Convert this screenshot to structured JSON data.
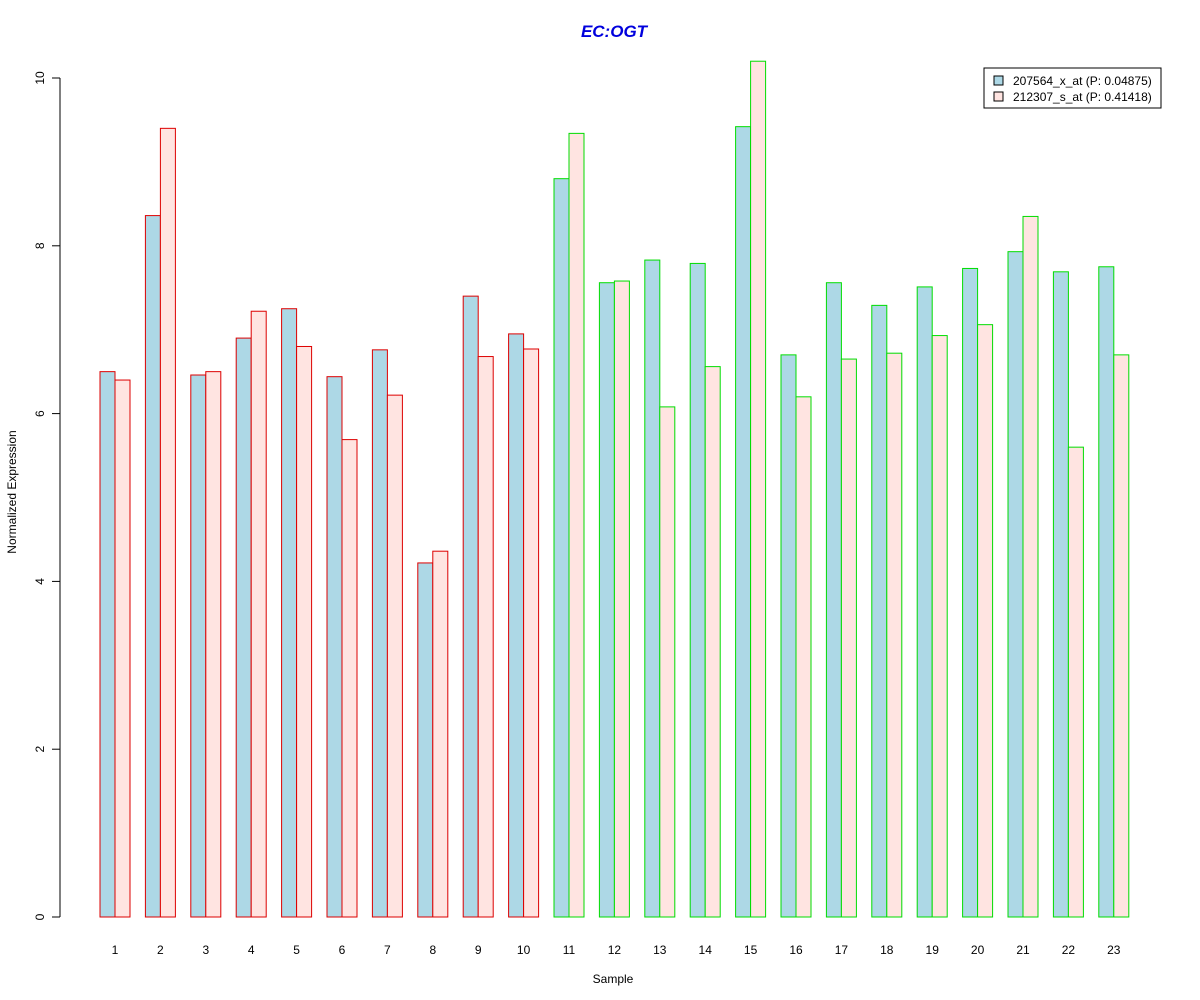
{
  "chart_data": {
    "type": "bar",
    "title": "EC:OGT",
    "xlabel": "Sample",
    "ylabel": "Normalized Expression",
    "ylim": [
      0,
      10
    ],
    "yticks": [
      0,
      2,
      4,
      6,
      8,
      10
    ],
    "grid": false,
    "legend_position": "top-right",
    "categories": [
      "1",
      "2",
      "3",
      "4",
      "5",
      "6",
      "7",
      "8",
      "9",
      "10",
      "11",
      "12",
      "13",
      "14",
      "15",
      "16",
      "17",
      "18",
      "19",
      "20",
      "21",
      "22",
      "23"
    ],
    "group_border_colors": [
      "#dd0000",
      "#dd0000",
      "#dd0000",
      "#dd0000",
      "#dd0000",
      "#dd0000",
      "#dd0000",
      "#dd0000",
      "#dd0000",
      "#dd0000",
      "#00dd00",
      "#00dd00",
      "#00dd00",
      "#00dd00",
      "#00dd00",
      "#00dd00",
      "#00dd00",
      "#00dd00",
      "#00dd00",
      "#00dd00",
      "#00dd00",
      "#00dd00",
      "#00dd00"
    ],
    "series": [
      {
        "name": "207564_x_at (P: 0.04875)",
        "fill": "#add8e6",
        "values": [
          6.5,
          8.36,
          6.46,
          6.9,
          7.25,
          6.44,
          6.76,
          4.22,
          7.4,
          6.95,
          8.8,
          7.56,
          7.83,
          7.79,
          9.42,
          6.7,
          7.56,
          7.29,
          7.51,
          7.73,
          7.93,
          7.69,
          7.75
        ]
      },
      {
        "name": "212307_s_at (P: 0.41418)",
        "fill": "#ffe4e1",
        "values": [
          6.4,
          9.4,
          6.5,
          7.22,
          6.8,
          5.69,
          6.22,
          4.36,
          6.68,
          6.77,
          9.34,
          7.58,
          6.08,
          6.56,
          10.2,
          6.2,
          6.65,
          6.72,
          6.93,
          7.06,
          8.35,
          5.6,
          6.7
        ]
      }
    ]
  }
}
